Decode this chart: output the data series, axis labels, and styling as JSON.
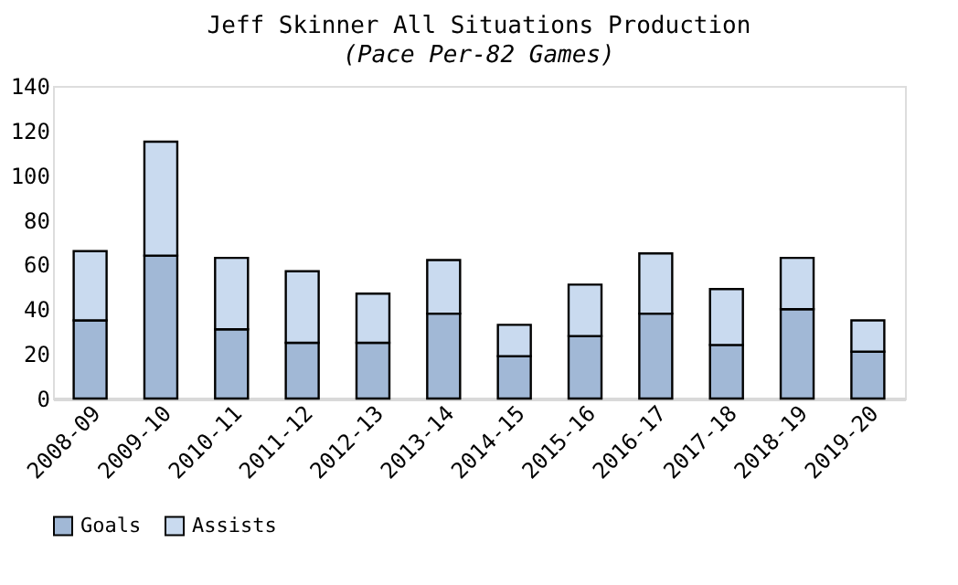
{
  "chart_data": {
    "type": "bar",
    "title": "Jeff Skinner All Situations Production",
    "subtitle": "(Pace Per-82 Games)",
    "categories": [
      "2008-09",
      "2009-10",
      "2010-11",
      "2011-12",
      "2012-13",
      "2013-14",
      "2014-15",
      "2015-16",
      "2016-17",
      "2017-18",
      "2018-19",
      "2019-20"
    ],
    "stacked": true,
    "series": [
      {
        "name": "Goals",
        "color": "#a1b8d6",
        "values": [
          35,
          64,
          31,
          25,
          25,
          38,
          19,
          28,
          38,
          24,
          40,
          21
        ]
      },
      {
        "name": "Assists",
        "color": "#c9daef",
        "values": [
          31,
          51,
          32,
          32,
          22,
          24,
          14,
          23,
          27,
          25,
          23,
          14
        ]
      }
    ],
    "ylim": [
      0,
      140
    ],
    "yticks": [
      0,
      20,
      40,
      60,
      80,
      100,
      120,
      140
    ],
    "grid": false,
    "legend": "bottom"
  }
}
